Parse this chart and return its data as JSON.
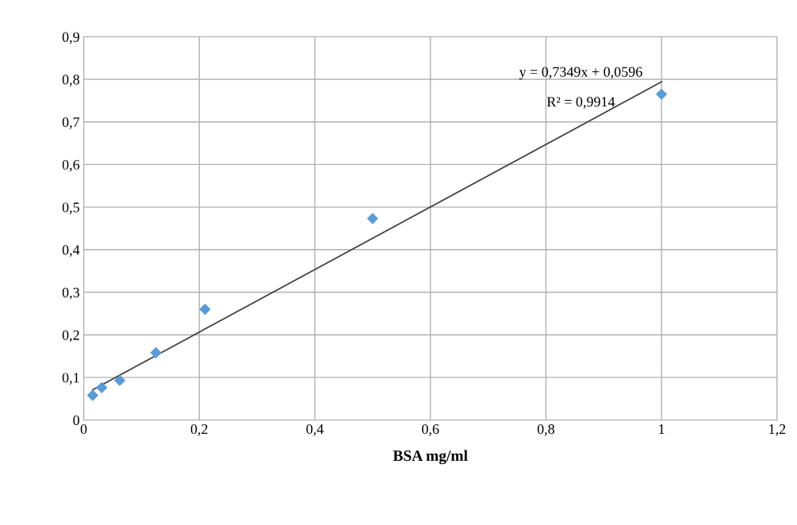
{
  "chart_data": {
    "type": "scatter",
    "xlabel": "BSA mg/ml",
    "series": [
      {
        "color": "#5b9bd5",
        "marker": "diamond",
        "x": [
          0.0156,
          0.0313,
          0.0625,
          0.125,
          0.21,
          0.5,
          1.0
        ],
        "values": [
          0.058,
          0.076,
          0.093,
          0.158,
          0.26,
          0.473,
          0.765
        ]
      },
      {
        "type": "line",
        "color": "#404040",
        "marker": "none",
        "line_style": "solid",
        "x": [
          0.0156,
          1.0
        ],
        "values": [
          0.071,
          0.794
        ]
      }
    ],
    "annotations": [
      "y = 0,7349x + 0,0596",
      "R² = 0,9914"
    ],
    "xlim": [
      0,
      1.2
    ],
    "xticks": [
      0,
      {
        "value": 0.2,
        "label": "0,2"
      },
      {
        "value": 0.4,
        "label": "0,4"
      },
      {
        "value": 0.6,
        "label": "0,6"
      },
      {
        "value": 0.8,
        "label": "0,8"
      },
      1,
      {
        "value": 1.2,
        "label": "1,2"
      }
    ],
    "ylim": [
      0,
      0.9
    ],
    "yticks": [
      0,
      {
        "value": 0.1,
        "label": "0,1"
      },
      {
        "value": 0.2,
        "label": "0,2"
      },
      {
        "value": 0.3,
        "label": "0,3"
      },
      {
        "value": 0.4,
        "label": "0,4"
      },
      {
        "value": 0.5,
        "label": "0,5"
      },
      {
        "value": 0.6,
        "label": "0,6"
      },
      {
        "value": 0.7,
        "label": "0,7"
      },
      {
        "value": 0.8,
        "label": "0,8"
      },
      {
        "value": 0.9,
        "label": "0,9"
      }
    ],
    "grid": true,
    "legend": false
  }
}
